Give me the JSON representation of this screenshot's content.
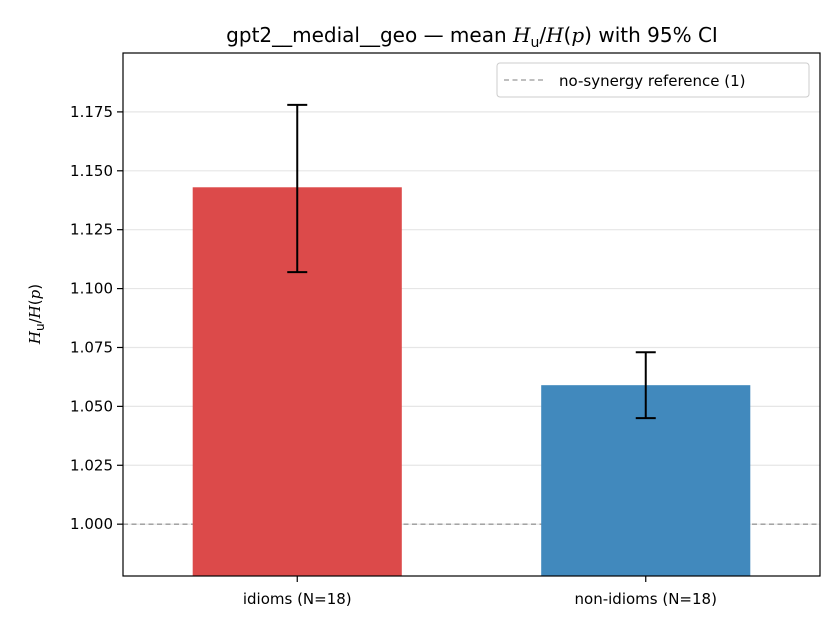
{
  "chart_data": {
    "type": "bar",
    "title_prefix": "gpt2__medial__geo — mean ",
    "title_suffix": " with 95% CI",
    "ylabel": "H_u/H(p)",
    "categories": [
      "idioms (N=18)",
      "non-idioms (N=18)"
    ],
    "values": [
      1.143,
      1.059
    ],
    "ci_low": [
      1.107,
      1.045
    ],
    "ci_high": [
      1.178,
      1.073
    ],
    "bar_colors": [
      "#dc4a4a",
      "#4189bd"
    ],
    "ylim": [
      0.978,
      1.2
    ],
    "yticks": [
      1.0,
      1.025,
      1.05,
      1.075,
      1.1,
      1.125,
      1.15,
      1.175
    ],
    "ytick_labels": [
      "1.000",
      "1.025",
      "1.050",
      "1.075",
      "1.100",
      "1.125",
      "1.150",
      "1.175"
    ],
    "reference": {
      "value": 1.0,
      "label": "no-synergy reference (1)",
      "color": "#999999",
      "style": "dashed"
    },
    "grid": "y",
    "legend_position": "upper-right"
  }
}
